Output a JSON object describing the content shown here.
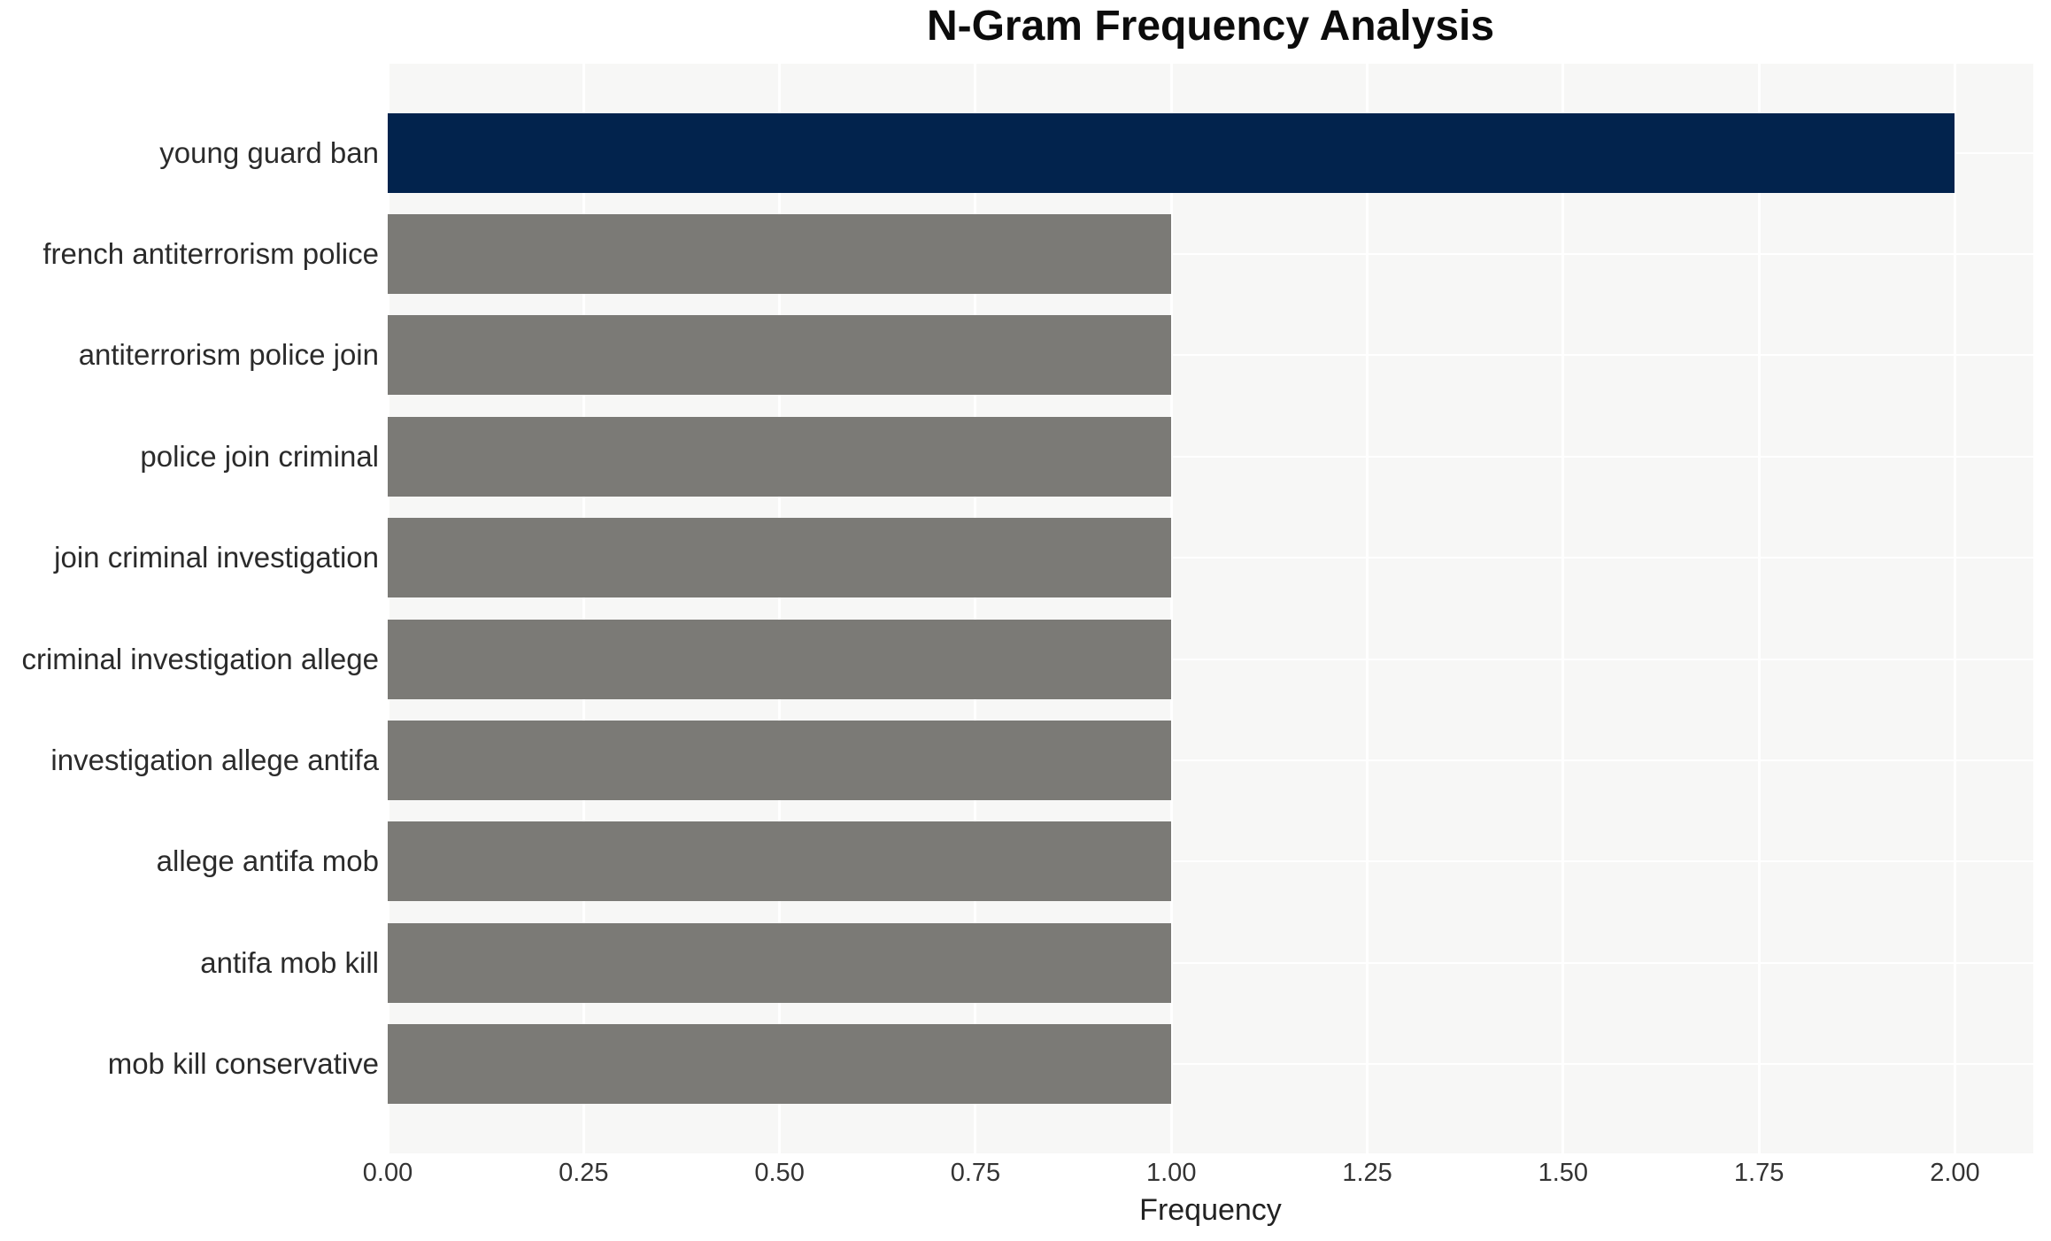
{
  "chart_data": {
    "type": "bar",
    "orientation": "horizontal",
    "title": "N-Gram Frequency Analysis",
    "xlabel": "Frequency",
    "ylabel": "",
    "categories": [
      "young guard ban",
      "french antiterrorism police",
      "antiterrorism police join",
      "police join criminal",
      "join criminal investigation",
      "criminal investigation allege",
      "investigation allege antifa",
      "allege antifa mob",
      "antifa mob kill",
      "mob kill conservative"
    ],
    "values": [
      2,
      1,
      1,
      1,
      1,
      1,
      1,
      1,
      1,
      1
    ],
    "bar_colors": [
      "#02234d",
      "#7b7a76",
      "#7b7a76",
      "#7b7a76",
      "#7b7a76",
      "#7b7a76",
      "#7b7a76",
      "#7b7a76",
      "#7b7a76",
      "#7b7a76"
    ],
    "xlim": [
      0,
      2.1
    ],
    "xticks": [
      {
        "value": 0,
        "label": "0.00"
      },
      {
        "value": 0.25,
        "label": "0.25"
      },
      {
        "value": 0.5,
        "label": "0.50"
      },
      {
        "value": 0.75,
        "label": "0.75"
      },
      {
        "value": 1,
        "label": "1.00"
      },
      {
        "value": 1.25,
        "label": "1.25"
      },
      {
        "value": 1.5,
        "label": "1.50"
      },
      {
        "value": 1.75,
        "label": "1.75"
      },
      {
        "value": 2,
        "label": "2.00"
      }
    ],
    "grid": {
      "show": true,
      "color": "#ffffff",
      "vertical_at_xticks": true,
      "horizontal_at_category_centers": true
    },
    "legend": null,
    "plot_background": "#f7f7f6",
    "figure_background": "#ffffff"
  }
}
